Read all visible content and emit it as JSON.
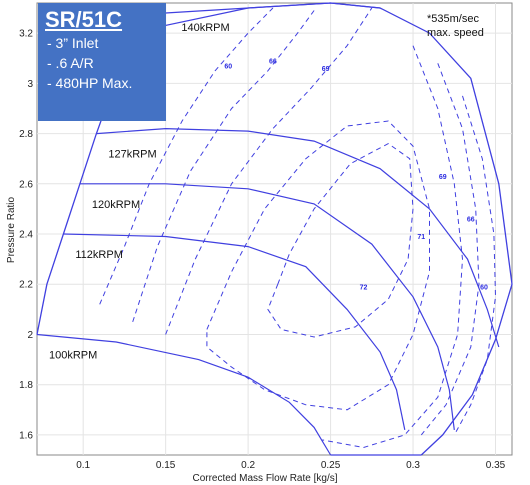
{
  "info_box": {
    "title": "SR/51C",
    "specs": [
      "- 3” Inlet",
      "- .6 A/R",
      "- 480HP Max."
    ]
  },
  "note": {
    "line1": "*535m/sec",
    "line2": "max. speed"
  },
  "colors": {
    "lines": "#4040e0",
    "box": "#4472c4",
    "labels": "#2b2be0"
  },
  "chart_data": {
    "type": "compressor_map",
    "xlabel": "Corrected Mass Flow Rate [kg/s]",
    "ylabel": "Pressure Ratio",
    "xlim": [
      0.072,
      0.36
    ],
    "ylim": [
      1.52,
      3.32
    ],
    "xticks": [
      "0.1",
      "0.15",
      "0.2",
      "0.25",
      "0.3",
      "0.35"
    ],
    "xtick_values": [
      0.1,
      0.15,
      0.2,
      0.25,
      0.3,
      0.35
    ],
    "yticks": [
      "1.6",
      "1.8",
      "2",
      "2.2",
      "2.4",
      "2.6",
      "2.8",
      "3",
      "3.2"
    ],
    "ytick_values": [
      1.6,
      1.8,
      2.0,
      2.2,
      2.4,
      2.6,
      2.8,
      3.0,
      3.2
    ],
    "grid": true,
    "surge_line": [
      [
        0.072,
        2.0
      ],
      [
        0.078,
        2.2
      ],
      [
        0.088,
        2.4
      ],
      [
        0.098,
        2.6
      ],
      [
        0.108,
        2.8
      ],
      [
        0.119,
        3.0
      ],
      [
        0.128,
        3.2
      ]
    ],
    "outer_boundary": [
      [
        0.128,
        3.2
      ],
      [
        0.15,
        3.28
      ],
      [
        0.2,
        3.3
      ],
      [
        0.25,
        3.32
      ],
      [
        0.28,
        3.3
      ],
      [
        0.31,
        3.2
      ],
      [
        0.335,
        3.02
      ],
      [
        0.352,
        2.6
      ],
      [
        0.36,
        2.2
      ],
      [
        0.35,
        1.98
      ],
      [
        0.336,
        1.76
      ],
      [
        0.318,
        1.6
      ],
      [
        0.305,
        1.52
      ]
    ],
    "speed_lines": [
      {
        "label": "140kRPM",
        "points": [
          [
            0.128,
            3.2
          ],
          [
            0.2,
            3.3
          ],
          [
            0.25,
            3.32
          ],
          [
            0.28,
            3.3
          ]
        ]
      },
      {
        "label": "127kRPM",
        "points": [
          [
            0.108,
            2.8
          ],
          [
            0.15,
            2.82
          ],
          [
            0.2,
            2.81
          ],
          [
            0.24,
            2.77
          ],
          [
            0.28,
            2.66
          ],
          [
            0.31,
            2.5
          ],
          [
            0.333,
            2.3
          ],
          [
            0.345,
            2.1
          ],
          [
            0.352,
            1.95
          ]
        ]
      },
      {
        "label": "120kRPM",
        "points": [
          [
            0.098,
            2.6
          ],
          [
            0.15,
            2.6
          ],
          [
            0.2,
            2.58
          ],
          [
            0.24,
            2.52
          ],
          [
            0.275,
            2.36
          ],
          [
            0.3,
            2.15
          ],
          [
            0.315,
            1.95
          ],
          [
            0.322,
            1.78
          ],
          [
            0.325,
            1.62
          ]
        ]
      },
      {
        "label": "112kRPM",
        "points": [
          [
            0.088,
            2.4
          ],
          [
            0.15,
            2.39
          ],
          [
            0.2,
            2.35
          ],
          [
            0.235,
            2.27
          ],
          [
            0.26,
            2.1
          ],
          [
            0.28,
            1.93
          ],
          [
            0.29,
            1.78
          ],
          [
            0.295,
            1.62
          ]
        ]
      },
      {
        "label": "100kRPM",
        "points": [
          [
            0.072,
            2.0
          ],
          [
            0.12,
            1.97
          ],
          [
            0.17,
            1.9
          ],
          [
            0.2,
            1.83
          ],
          [
            0.225,
            1.73
          ],
          [
            0.24,
            1.63
          ],
          [
            0.25,
            1.52
          ]
        ]
      }
    ],
    "efficiency_islands": [
      {
        "label": "60",
        "label_at": [
          0.188,
          3.06
        ],
        "points": [
          [
            0.11,
            2.12
          ],
          [
            0.125,
            2.35
          ],
          [
            0.14,
            2.6
          ],
          [
            0.16,
            2.85
          ],
          [
            0.18,
            3.05
          ],
          [
            0.2,
            3.2
          ],
          [
            0.215,
            3.3
          ]
        ]
      },
      {
        "label": "66",
        "label_at": [
          0.215,
          3.08
        ],
        "points": [
          [
            0.13,
            2.05
          ],
          [
            0.145,
            2.35
          ],
          [
            0.165,
            2.65
          ],
          [
            0.19,
            2.9
          ],
          [
            0.212,
            3.05
          ],
          [
            0.23,
            3.2
          ],
          [
            0.24,
            3.29
          ]
        ]
      },
      {
        "label": "69",
        "label_at": [
          0.247,
          3.05
        ],
        "points": [
          [
            0.15,
            2.0
          ],
          [
            0.168,
            2.3
          ],
          [
            0.19,
            2.6
          ],
          [
            0.215,
            2.82
          ],
          [
            0.238,
            2.98
          ],
          [
            0.26,
            3.15
          ],
          [
            0.275,
            3.3
          ]
        ]
      },
      {
        "label": "72",
        "label_at": [
          0.27,
          2.18
        ],
        "points": [
          [
            0.218,
            2.2
          ],
          [
            0.225,
            2.32
          ],
          [
            0.24,
            2.5
          ],
          [
            0.262,
            2.68
          ],
          [
            0.285,
            2.76
          ],
          [
            0.298,
            2.7
          ],
          [
            0.3,
            2.5
          ],
          [
            0.297,
            2.3
          ],
          [
            0.285,
            2.14
          ],
          [
            0.265,
            2.03
          ],
          [
            0.24,
            1.99
          ],
          [
            0.22,
            2.02
          ],
          [
            0.212,
            2.1
          ],
          [
            0.218,
            2.2
          ]
        ]
      },
      {
        "label": "71",
        "label_at": [
          0.305,
          2.38
        ],
        "points": [
          [
            0.175,
            2.02
          ],
          [
            0.19,
            2.25
          ],
          [
            0.21,
            2.5
          ],
          [
            0.235,
            2.7
          ],
          [
            0.26,
            2.83
          ],
          [
            0.285,
            2.85
          ],
          [
            0.3,
            2.75
          ],
          [
            0.31,
            2.5
          ],
          [
            0.31,
            2.25
          ],
          [
            0.3,
            2.0
          ],
          [
            0.285,
            1.8
          ],
          [
            0.26,
            1.7
          ],
          [
            0.235,
            1.72
          ],
          [
            0.21,
            1.78
          ],
          [
            0.19,
            1.87
          ],
          [
            0.175,
            1.95
          ],
          [
            0.175,
            2.02
          ]
        ]
      },
      {
        "label": "69",
        "label_at": [
          0.318,
          2.62
        ],
        "points": [
          [
            0.3,
            3.15
          ],
          [
            0.315,
            2.9
          ],
          [
            0.325,
            2.6
          ],
          [
            0.33,
            2.3
          ],
          [
            0.327,
            2.0
          ],
          [
            0.315,
            1.75
          ],
          [
            0.295,
            1.6
          ],
          [
            0.27,
            1.55
          ],
          [
            0.245,
            1.58
          ]
        ]
      },
      {
        "label": "66",
        "label_at": [
          0.335,
          2.45
        ],
        "points": [
          [
            0.315,
            3.08
          ],
          [
            0.33,
            2.82
          ],
          [
            0.338,
            2.5
          ],
          [
            0.34,
            2.2
          ],
          [
            0.335,
            1.95
          ],
          [
            0.32,
            1.72
          ],
          [
            0.305,
            1.6
          ]
        ]
      },
      {
        "label": "60",
        "label_at": [
          0.343,
          2.18
        ],
        "points": [
          [
            0.33,
            2.95
          ],
          [
            0.342,
            2.7
          ],
          [
            0.349,
            2.4
          ],
          [
            0.35,
            2.15
          ],
          [
            0.345,
            1.9
          ],
          [
            0.335,
            1.72
          ],
          [
            0.325,
            1.6
          ]
        ]
      }
    ]
  }
}
